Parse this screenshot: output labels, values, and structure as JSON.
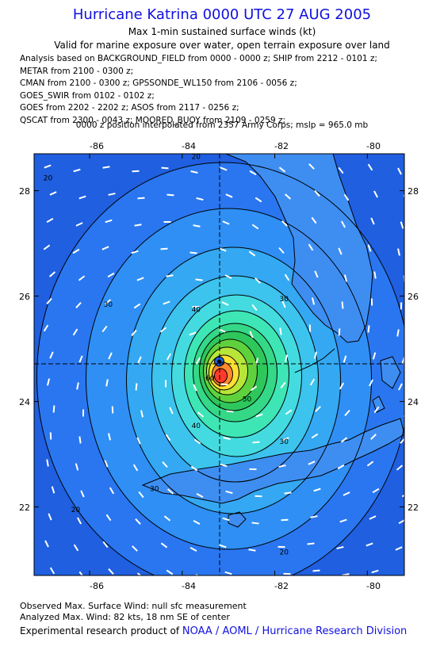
{
  "title": "Hurricane Katrina 0000 UTC 27 AUG 2005",
  "subtitle": "Max 1-min sustained surface winds (kt)",
  "exposure": "Valid for marine exposure over water, open terrain exposure over land",
  "analysis_lines": [
    "Analysis based on  BACKGROUND_FIELD from 0000 - 0000 z;  SHIP from 2212 - 0101 z;",
    "METAR from 2100 - 0300 z;",
    "CMAN from 2100 - 0300 z;  GPSSONDE_WL150 from 2106 - 0056 z;",
    "GOES_SWIR from 0102 - 0102 z;",
    "GOES from 2202 - 2202 z;  ASOS from 2117 - 0256 z;",
    "QSCAT from 2300 - 0043 z;  MOORED_BUOY from 2109 - 0259 z;"
  ],
  "interp_note": "0000 z position interpolated from 2357 Army Corps; mslp = 965.0 mb",
  "footer": {
    "observed": "Observed Max. Surface Wind: null sfc measurement",
    "analyzed": "Analyzed Max. Wind: 82 kts, 18 nm SE of center",
    "credit_prefix": "Experimental research product of ",
    "credit_org": "NOAA / AOML / Hurricane Research Division"
  },
  "colors": {
    "title": "#1010e0",
    "wind_scale": [
      "#1f5fe0",
      "#2a76f0",
      "#2f8ff5",
      "#34a8f2",
      "#3cc3ee",
      "#43dbe0",
      "#3ee6b5",
      "#34d887",
      "#2ec75c",
      "#5fd13c",
      "#b8e638",
      "#ffe030",
      "#ff8a30",
      "#ff3a2a"
    ]
  },
  "chart_data": {
    "type": "heatmap",
    "title": "Hurricane Katrina 0000 UTC 27 AUG 2005",
    "variable": "Max 1-min sustained surface winds (kt)",
    "x_ticks": [
      "-86",
      "-84",
      "-82",
      "-80"
    ],
    "y_ticks": [
      "28",
      "26",
      "24",
      "22"
    ],
    "xlim": [
      -87.2,
      -79.2
    ],
    "ylim": [
      20.7,
      28.7
    ],
    "storm_center": {
      "lon": -83.2,
      "lat": 24.7
    },
    "max_wind_kt": 82,
    "contour_labels": [
      {
        "text": "20",
        "lon": -86.9,
        "lat": 28.2
      },
      {
        "text": "20",
        "lon": -83.7,
        "lat": 28.6
      },
      {
        "text": "20",
        "lon": -86.3,
        "lat": 21.9
      },
      {
        "text": "20",
        "lon": -81.8,
        "lat": 21.1
      },
      {
        "text": "30",
        "lon": -85.6,
        "lat": 25.8
      },
      {
        "text": "30",
        "lon": -81.8,
        "lat": 25.9
      },
      {
        "text": "30",
        "lon": -81.8,
        "lat": 23.2
      },
      {
        "text": "30",
        "lon": -84.6,
        "lat": 22.3
      },
      {
        "text": "40",
        "lon": -83.7,
        "lat": 25.7
      },
      {
        "text": "40",
        "lon": -83.7,
        "lat": 23.5
      },
      {
        "text": "50",
        "lon": -82.6,
        "lat": 24.0
      },
      {
        "text": "60",
        "lon": -83.4,
        "lat": 24.4
      }
    ]
  }
}
